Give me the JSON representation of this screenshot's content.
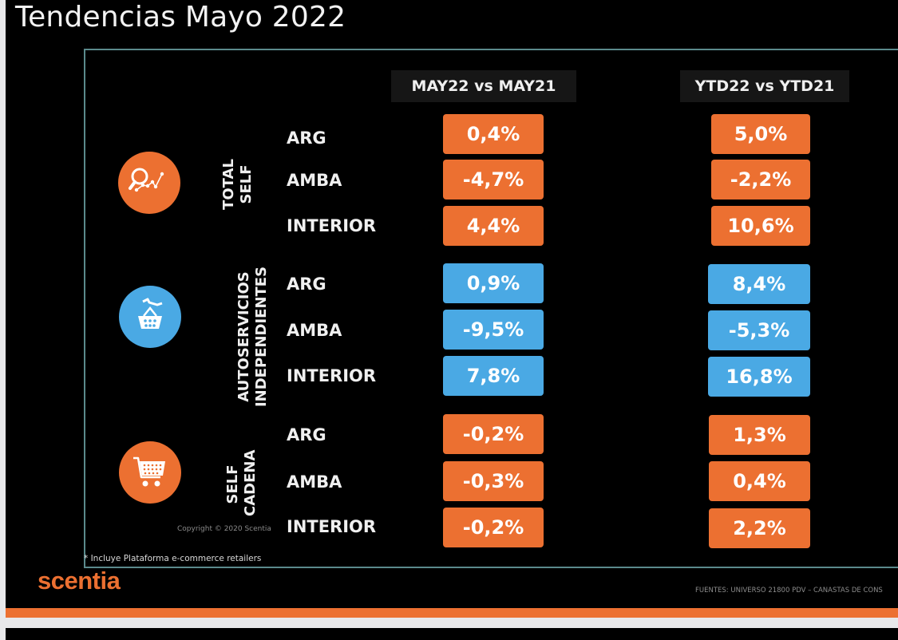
{
  "title": "Tendencias Mayo 2022",
  "columns": [
    "MAY22 vs MAY21",
    "YTD22 vs YTD21"
  ],
  "colors": {
    "orange": "#ec7031",
    "blue": "#4aa9e4",
    "frame": "#5b8a8c"
  },
  "groups": [
    {
      "label_lines": [
        "TOTAL",
        "SELF"
      ],
      "icon": "magnifier-chart-icon",
      "color": "orange",
      "rows": [
        {
          "region": "ARG",
          "may": "0,4%",
          "ytd": "5,0%"
        },
        {
          "region": "AMBA",
          "may": "-4,7%",
          "ytd": "-2,2%"
        },
        {
          "region": "INTERIOR",
          "may": "4,4%",
          "ytd": "10,6%"
        }
      ]
    },
    {
      "label_lines": [
        "AUTOSERVICIOS",
        "INDEPENDIENTES"
      ],
      "icon": "basket-hand-icon",
      "color": "blue",
      "rows": [
        {
          "region": "ARG",
          "may": "0,9%",
          "ytd": "8,4%"
        },
        {
          "region": "AMBA",
          "may": "-9,5%",
          "ytd": "-5,3%"
        },
        {
          "region": "INTERIOR",
          "may": "7,8%",
          "ytd": "16,8%"
        }
      ]
    },
    {
      "label_lines": [
        "SELF",
        "CADENA"
      ],
      "icon": "shopping-cart-icon",
      "color": "orange",
      "rows": [
        {
          "region": "ARG",
          "may": "-0,2%",
          "ytd": "1,3%"
        },
        {
          "region": "AMBA",
          "may": "-0,3%",
          "ytd": "0,4%"
        },
        {
          "region": "INTERIOR",
          "may": "-0,2%",
          "ytd": "2,2%"
        }
      ]
    }
  ],
  "copyright": "Copyright © 2020 Scentia",
  "footnote": "* Incluye Plataforma e-commerce retailers",
  "logo": "scentia",
  "sources": "FUENTES: UNIVERSO 21800 PDV – CANASTAS DE CONS"
}
